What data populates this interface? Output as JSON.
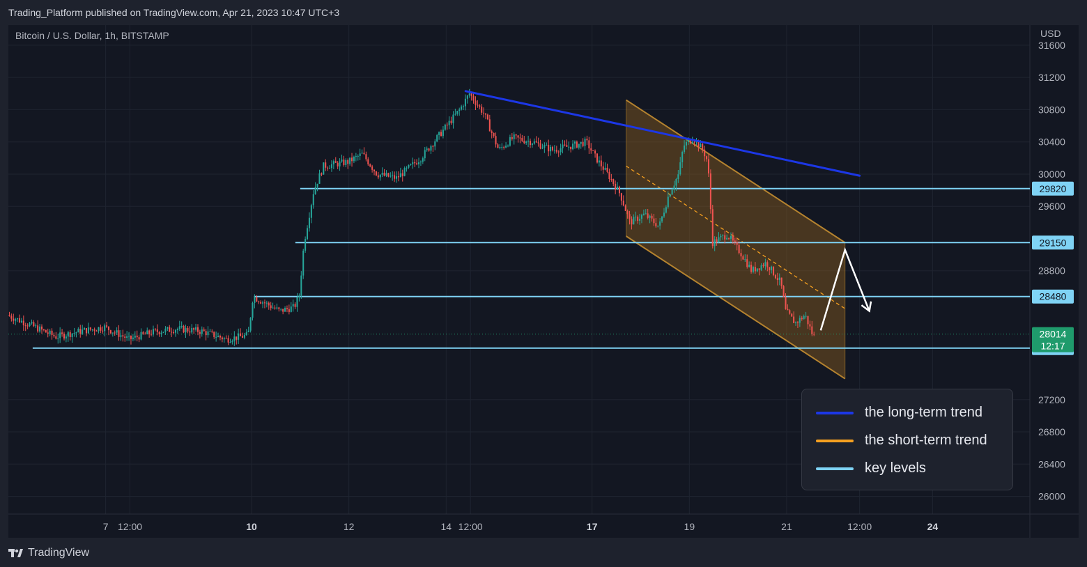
{
  "header": {
    "caption": "Trading_Platform published on TradingView.com, Apr 21, 2023 10:47 UTC+3"
  },
  "footer": {
    "brand": "TradingView"
  },
  "colors": {
    "bullish": "#26a69a",
    "bearish": "#ef5350",
    "long_trend": "#1c37e6",
    "short_trend": "#f5a020",
    "key_level": "#7fd3f5",
    "channel_fill": "#8a5e20",
    "last_price": "#1f9b6c"
  },
  "legend": {
    "items": [
      {
        "label": "the long-term trend",
        "color": "#1c37e6"
      },
      {
        "label": "the short-term trend",
        "color": "#f5a020"
      },
      {
        "label": "key levels",
        "color": "#7fd3f5"
      }
    ]
  },
  "chart_data": {
    "type": "candlestick",
    "symbol": "Bitcoin / U.S. Dollar, 1h, BITSTAMP",
    "currency": "USD",
    "y_ticks": [
      31600,
      31200,
      30800,
      30400,
      30000,
      29600,
      28800,
      27200,
      26800,
      26400,
      26000
    ],
    "ylim": [
      25780,
      31850
    ],
    "x_ticks": [
      {
        "label": "7",
        "x": 7.0,
        "bold": false
      },
      {
        "label": "12:00",
        "x": 7.5,
        "bold": false
      },
      {
        "label": "10",
        "x": 10.0,
        "bold": true
      },
      {
        "label": "12",
        "x": 12.0,
        "bold": false
      },
      {
        "label": "14",
        "x": 14.0,
        "bold": false
      },
      {
        "label": "12:00",
        "x": 14.5,
        "bold": false
      },
      {
        "label": "17",
        "x": 17.0,
        "bold": true
      },
      {
        "label": "19",
        "x": 19.0,
        "bold": false
      },
      {
        "label": "21",
        "x": 21.0,
        "bold": false
      },
      {
        "label": "12:00",
        "x": 22.5,
        "bold": false
      },
      {
        "label": "24",
        "x": 24.0,
        "bold": true
      }
    ],
    "xlim": [
      5.0,
      26.0
    ],
    "last_price": 28014,
    "countdown": "12:17",
    "key_levels": [
      29820,
      29150,
      28480,
      27840
    ],
    "long_term_trend": {
      "from": [
        14.4,
        31030
      ],
      "to": [
        22.5,
        29980
      ]
    },
    "channel": {
      "upper": {
        "from": [
          17.7,
          30920
        ],
        "to": [
          22.2,
          29150
        ]
      },
      "lower": {
        "from": [
          17.7,
          29230
        ],
        "to": [
          22.2,
          27460
        ]
      },
      "mid": {
        "from": [
          17.7,
          30100
        ],
        "to": [
          22.2,
          28330
        ]
      }
    },
    "projection": [
      [
        21.7,
        28060
      ],
      [
        22.2,
        29060
      ],
      [
        22.7,
        28300
      ]
    ],
    "price_path": [
      [
        5.0,
        28250
      ],
      [
        5.5,
        28120
      ],
      [
        6.0,
        27980
      ],
      [
        6.5,
        28050
      ],
      [
        7.0,
        28100
      ],
      [
        7.5,
        27950
      ],
      [
        8.0,
        28040
      ],
      [
        8.5,
        28080
      ],
      [
        9.0,
        28050
      ],
      [
        9.5,
        27950
      ],
      [
        9.95,
        28000
      ],
      [
        10.05,
        28480
      ],
      [
        10.6,
        28300
      ],
      [
        10.9,
        28350
      ],
      [
        11.0,
        28500
      ],
      [
        11.1,
        29150
      ],
      [
        11.3,
        29800
      ],
      [
        11.5,
        30100
      ],
      [
        12.0,
        30150
      ],
      [
        12.3,
        30250
      ],
      [
        12.6,
        30000
      ],
      [
        13.0,
        29950
      ],
      [
        13.5,
        30200
      ],
      [
        13.9,
        30500
      ],
      [
        14.3,
        30800
      ],
      [
        14.5,
        31000
      ],
      [
        14.8,
        30750
      ],
      [
        15.1,
        30300
      ],
      [
        15.4,
        30450
      ],
      [
        15.8,
        30400
      ],
      [
        16.2,
        30300
      ],
      [
        16.6,
        30350
      ],
      [
        16.9,
        30400
      ],
      [
        17.1,
        30200
      ],
      [
        17.4,
        29950
      ],
      [
        17.6,
        29750
      ],
      [
        17.8,
        29400
      ],
      [
        18.1,
        29500
      ],
      [
        18.4,
        29350
      ],
      [
        18.6,
        29750
      ],
      [
        18.8,
        30000
      ],
      [
        18.9,
        30350
      ],
      [
        19.1,
        30450
      ],
      [
        19.3,
        30300
      ],
      [
        19.4,
        30150
      ],
      [
        19.5,
        29150
      ],
      [
        19.8,
        29250
      ],
      [
        20.1,
        29000
      ],
      [
        20.3,
        28800
      ],
      [
        20.6,
        28900
      ],
      [
        20.9,
        28650
      ],
      [
        21.0,
        28300
      ],
      [
        21.2,
        28150
      ],
      [
        21.4,
        28250
      ],
      [
        21.55,
        28014
      ]
    ]
  }
}
